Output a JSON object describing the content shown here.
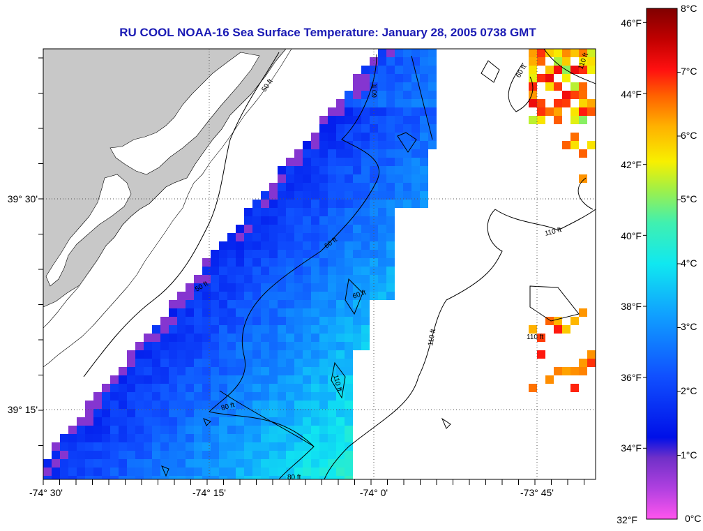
{
  "title": "RU COOL  NOAA-16  Sea Surface Temperature:  January 28, 2005 0738 GMT",
  "axes": {
    "x_ticks": [
      "-74° 30'",
      "-74° 15'",
      "-74° 0'",
      "-73° 45'"
    ],
    "y_ticks": [
      "39° 30'",
      "39° 15'"
    ]
  },
  "contours": [
    {
      "label": "50 ft"
    },
    {
      "label": "50 ft"
    },
    {
      "label": "60 ft"
    },
    {
      "label": "60 ft"
    },
    {
      "label": "60 ft"
    },
    {
      "label": "60 ft"
    },
    {
      "label": "80 ft"
    },
    {
      "label": "80 ft"
    },
    {
      "label": "110 ft"
    },
    {
      "label": "110 ft"
    },
    {
      "label": "110 ft"
    },
    {
      "label": "110 ft"
    },
    {
      "label": "110 ft"
    }
  ],
  "colorbar": {
    "fahrenheit": [
      "46°F",
      "44°F",
      "42°F",
      "40°F",
      "38°F",
      "36°F",
      "34°F",
      "32°F"
    ],
    "celsius": [
      "8°C",
      "7°C",
      "6°C",
      "5°C",
      "4°C",
      "3°C",
      "2°C",
      "1°C",
      "0°C"
    ],
    "min_f": 32,
    "max_f": 46.4,
    "colors": [
      "#ff55ee",
      "#b040e0",
      "#7030c8",
      "#0010e8",
      "#1050ff",
      "#10a0ff",
      "#10e8f0",
      "#40f0b0",
      "#a8f040",
      "#f8f000",
      "#ffb000",
      "#ff6000",
      "#ff1010",
      "#c00000",
      "#800000"
    ]
  },
  "colors": {
    "land": "#c8c8c8",
    "title": "#1a1ab4"
  }
}
